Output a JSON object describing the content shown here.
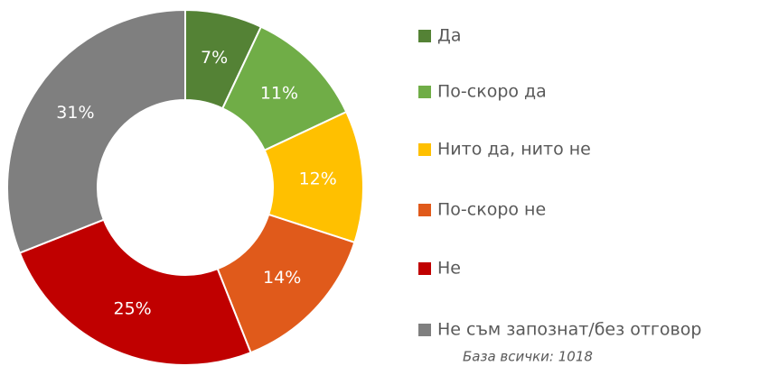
{
  "chart_data": {
    "type": "donut",
    "categories": [
      "Да",
      "По-скоро да",
      "Нито да, нито не",
      "По-скоро не",
      "Не",
      "Не съм запознат/без отговор"
    ],
    "values": [
      7,
      11,
      12,
      14,
      25,
      31
    ],
    "value_labels": [
      "7%",
      "11%",
      "12%",
      "14%",
      "25%",
      "31%"
    ],
    "colors": [
      "#548235",
      "#70ad47",
      "#ffc000",
      "#e05a1b",
      "#c00000",
      "#7f7f7f"
    ],
    "legend": "right",
    "footnote": "База всички: 1018"
  }
}
